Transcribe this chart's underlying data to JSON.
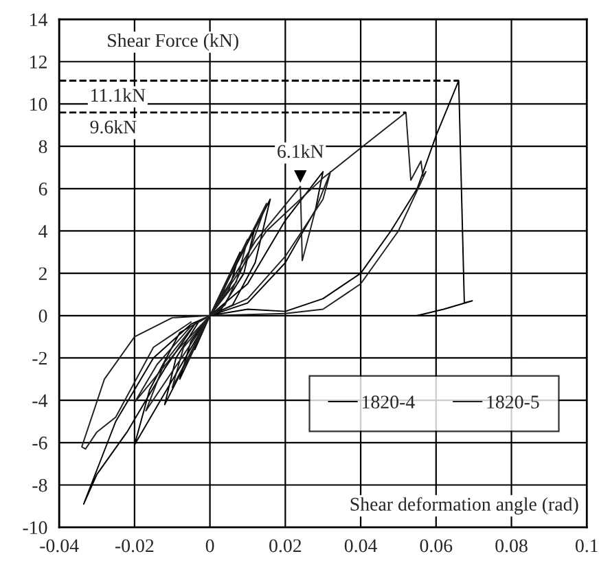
{
  "chart_data": {
    "type": "line",
    "ylabel": "Shear Force (kN)",
    "xlabel": "Shear deformation angle (rad)",
    "xlim": [
      -0.04,
      0.1
    ],
    "xticks": [
      -0.04,
      -0.02,
      0,
      0.02,
      0.04,
      0.06,
      0.08,
      0.1
    ],
    "ylim": [
      -10,
      14
    ],
    "yticks": [
      -10,
      -8,
      -6,
      -4,
      -2,
      0,
      2,
      4,
      6,
      8,
      10,
      12,
      14
    ],
    "grid": true,
    "legend": "bottom right",
    "line_style": "solid",
    "ref_lines": [
      {
        "axis": "y",
        "value": 11.1,
        "label": "11.1kN",
        "line_style": "dashed",
        "color": "#000000"
      },
      {
        "axis": "y",
        "value": 9.6,
        "label": "9.6kN",
        "line_style": "dashed",
        "color": "#000000"
      }
    ],
    "annotations": [
      {
        "text": "6.1kN",
        "x": 0.024,
        "y": 6.1
      }
    ],
    "series": [
      {
        "name": "1820-4",
        "color": "#000000",
        "x": [
          0,
          0.004,
          0.002,
          0,
          -0.004,
          -0.002,
          0,
          0.008,
          0.005,
          0,
          -0.008,
          -0.005,
          0,
          0.012,
          0.009,
          0.003,
          0,
          -0.012,
          -0.009,
          -0.003,
          0,
          0.016,
          0.012,
          0.006,
          0,
          -0.02,
          -0.016,
          -0.008,
          0,
          0.01,
          0.02,
          0.03,
          0.028,
          0.02,
          0.01,
          0,
          -0.005,
          -0.015,
          -0.025,
          -0.0335,
          -0.03,
          -0.022,
          -0.012,
          -0.004,
          0,
          0.01,
          0.02,
          0.03,
          0.04,
          0.048,
          0.055,
          0.06,
          0.066,
          0.0675,
          0.0696,
          0.062,
          0.055
        ],
        "values": [
          0,
          1.5,
          0.6,
          0,
          -1.6,
          -0.6,
          0,
          3.0,
          1.2,
          0,
          -3.0,
          -1.2,
          0,
          4.2,
          2.0,
          0.3,
          0,
          -4.2,
          -2.0,
          -0.3,
          0,
          5.5,
          2.5,
          0.5,
          0,
          -6.1,
          -3.5,
          -0.8,
          0,
          1.5,
          4.5,
          6.8,
          5.0,
          2.5,
          0.6,
          0,
          -0.4,
          -2.0,
          -5.0,
          -8.9,
          -7.5,
          -5.5,
          -2.5,
          -0.4,
          0,
          0.3,
          0.2,
          0.8,
          2.0,
          4.0,
          6.0,
          8.5,
          11.1,
          0.6,
          0.7,
          0.3,
          0
        ]
      },
      {
        "name": "1820-5",
        "color": "#202020",
        "x": [
          0,
          0.006,
          0.003,
          0,
          -0.006,
          -0.003,
          0,
          0.01,
          0.007,
          0,
          -0.01,
          -0.007,
          0,
          0.015,
          0.01,
          0.004,
          0,
          -0.017,
          -0.012,
          -0.004,
          0,
          0.012,
          0.024,
          0.0245,
          0.028,
          0.032,
          0.03,
          0.02,
          0.01,
          0,
          -0.008,
          -0.02,
          -0.014,
          -0.005,
          0,
          0.015,
          0.03,
          0.042,
          0.052,
          0.0533,
          0.056,
          0.0565,
          0.0573,
          0.05,
          0.04,
          0.03,
          0.02,
          0,
          -0.01,
          -0.02,
          -0.028,
          -0.034,
          -0.033,
          -0.03,
          -0.025,
          -0.015,
          -0.005
        ],
        "values": [
          0,
          2.2,
          0.9,
          0,
          -2.2,
          -0.9,
          0,
          3.6,
          1.6,
          0,
          -3.4,
          -1.5,
          0,
          5.3,
          2.8,
          0.5,
          0,
          -4.5,
          -2.2,
          -0.4,
          0,
          3.5,
          6.1,
          2.6,
          5.0,
          6.8,
          5.5,
          2.8,
          0.8,
          0,
          -1.5,
          -4.1,
          -2.3,
          -0.5,
          0,
          4.0,
          6.5,
          8.2,
          9.6,
          6.4,
          7.3,
          6.6,
          6.8,
          4.0,
          1.5,
          0.3,
          0.1,
          0,
          -0.1,
          -1.0,
          -3.0,
          -6.2,
          -6.3,
          -5.5,
          -4.8,
          -1.5,
          -0.3
        ]
      }
    ]
  }
}
